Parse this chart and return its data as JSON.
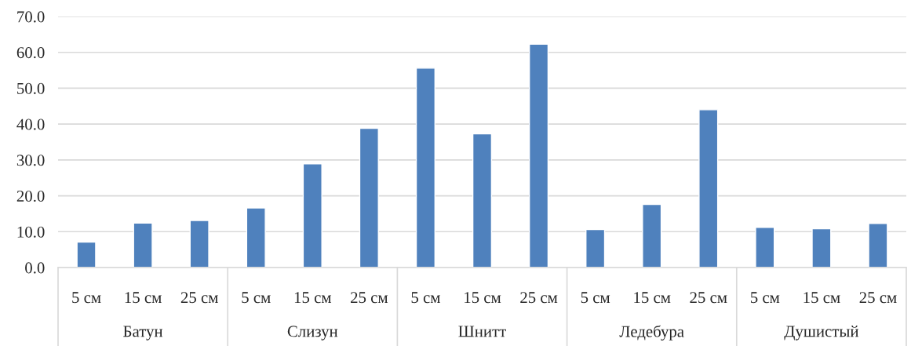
{
  "chart_data": {
    "type": "bar",
    "categories": [
      "5 см",
      "15 см",
      "25 см",
      "5 см",
      "15 см",
      "25 см",
      "5 см",
      "15 см",
      "25 см",
      "5 см",
      "15 см",
      "25 см",
      "5 см",
      "15 см",
      "25 см"
    ],
    "values": [
      7.1,
      12.4,
      13.1,
      16.6,
      28.9,
      38.8,
      55.6,
      37.3,
      62.3,
      10.6,
      17.6,
      44.0,
      11.2,
      10.8,
      12.3
    ],
    "color": "#4f81bd",
    "ylim": [
      0,
      70
    ],
    "yticks": [
      {
        "value": 0,
        "label": "0.0"
      },
      {
        "value": 10,
        "label": "10.0"
      },
      {
        "value": 20,
        "label": "20.0"
      },
      {
        "value": 30,
        "label": "30.0"
      },
      {
        "value": 40,
        "label": "40.0"
      },
      {
        "value": 50,
        "label": "50.0"
      },
      {
        "value": 60,
        "label": "60.0"
      },
      {
        "value": 70,
        "label": "70.0"
      }
    ],
    "grid": "y",
    "annotations": [
      "Батун",
      "Слизун",
      "Шнитт",
      "Ледебура",
      "Душистый"
    ]
  }
}
